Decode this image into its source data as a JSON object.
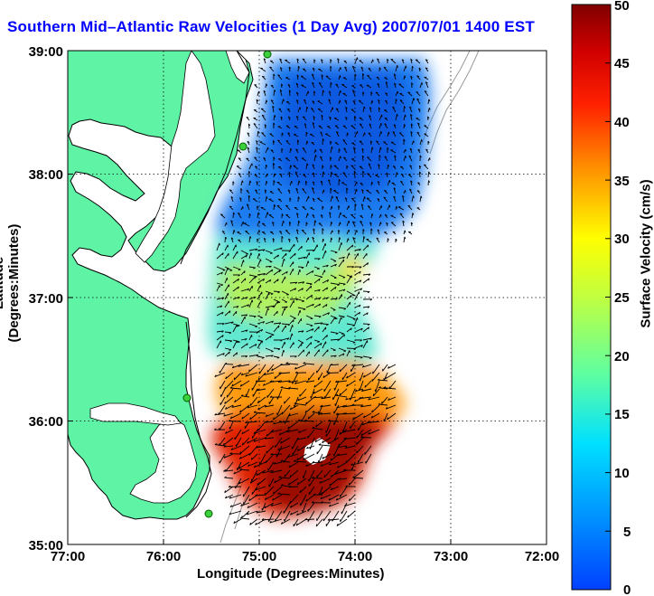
{
  "title": "Southern Mid–Atlantic Raw Velocities (1 Day Avg) 2007/07/01 1400 EST",
  "axes": {
    "xlabel": "Longitude (Degrees:Minutes)",
    "ylabel": "Latitude (Degrees:Minutes)",
    "x_ticks": [
      "77:00",
      "76:00",
      "75:00",
      "74:00",
      "73:00",
      "72:00"
    ],
    "y_ticks": [
      "39:00",
      "38:00",
      "37:00",
      "36:00",
      "35:00"
    ]
  },
  "colorbar": {
    "label": "Surface Velocity (cm/s)",
    "ticks": [
      "50",
      "45",
      "40",
      "35",
      "30",
      "25",
      "20",
      "15",
      "10",
      "5",
      "0"
    ],
    "range": [
      0,
      50
    ],
    "colors": [
      "#0000ff",
      "#0080ff",
      "#00ffff",
      "#80ff80",
      "#ffff00",
      "#ff8000",
      "#ff0000",
      "#800000"
    ]
  },
  "chart_data": {
    "type": "heatmap",
    "title": "Southern Mid–Atlantic Raw Velocities (1 Day Avg) 2007/07/01 1400 EST",
    "xlabel": "Longitude (Degrees:Minutes)",
    "ylabel": "Latitude (Degrees:Minutes)",
    "xlim": [
      -77,
      -72
    ],
    "ylim": [
      35,
      39
    ],
    "grid": true,
    "colorbar_label": "Surface Velocity (cm/s)",
    "value_range": [
      0,
      50
    ],
    "regions": [
      {
        "lon": [
          -74.7,
          -73.2
        ],
        "lat": [
          37.9,
          38.9
        ],
        "velocity": 6
      },
      {
        "lon": [
          -75.4,
          -74.3
        ],
        "lat": [
          37.3,
          38.1
        ],
        "velocity": 7
      },
      {
        "lon": [
          -75.5,
          -74.0
        ],
        "lat": [
          36.8,
          37.3
        ],
        "velocity": 17
      },
      {
        "lon": [
          -74.4,
          -74.1
        ],
        "lat": [
          37.2,
          37.4
        ],
        "velocity": 28
      },
      {
        "lon": [
          -75.1,
          -74.3
        ],
        "lat": [
          36.3,
          36.7
        ],
        "velocity": 33
      },
      {
        "lon": [
          -75.3,
          -73.9
        ],
        "lat": [
          35.5,
          36.3
        ],
        "velocity": 45
      },
      {
        "lon": [
          -75.2,
          -74.1
        ],
        "lat": [
          35.1,
          35.6
        ],
        "velocity": 42
      }
    ]
  }
}
